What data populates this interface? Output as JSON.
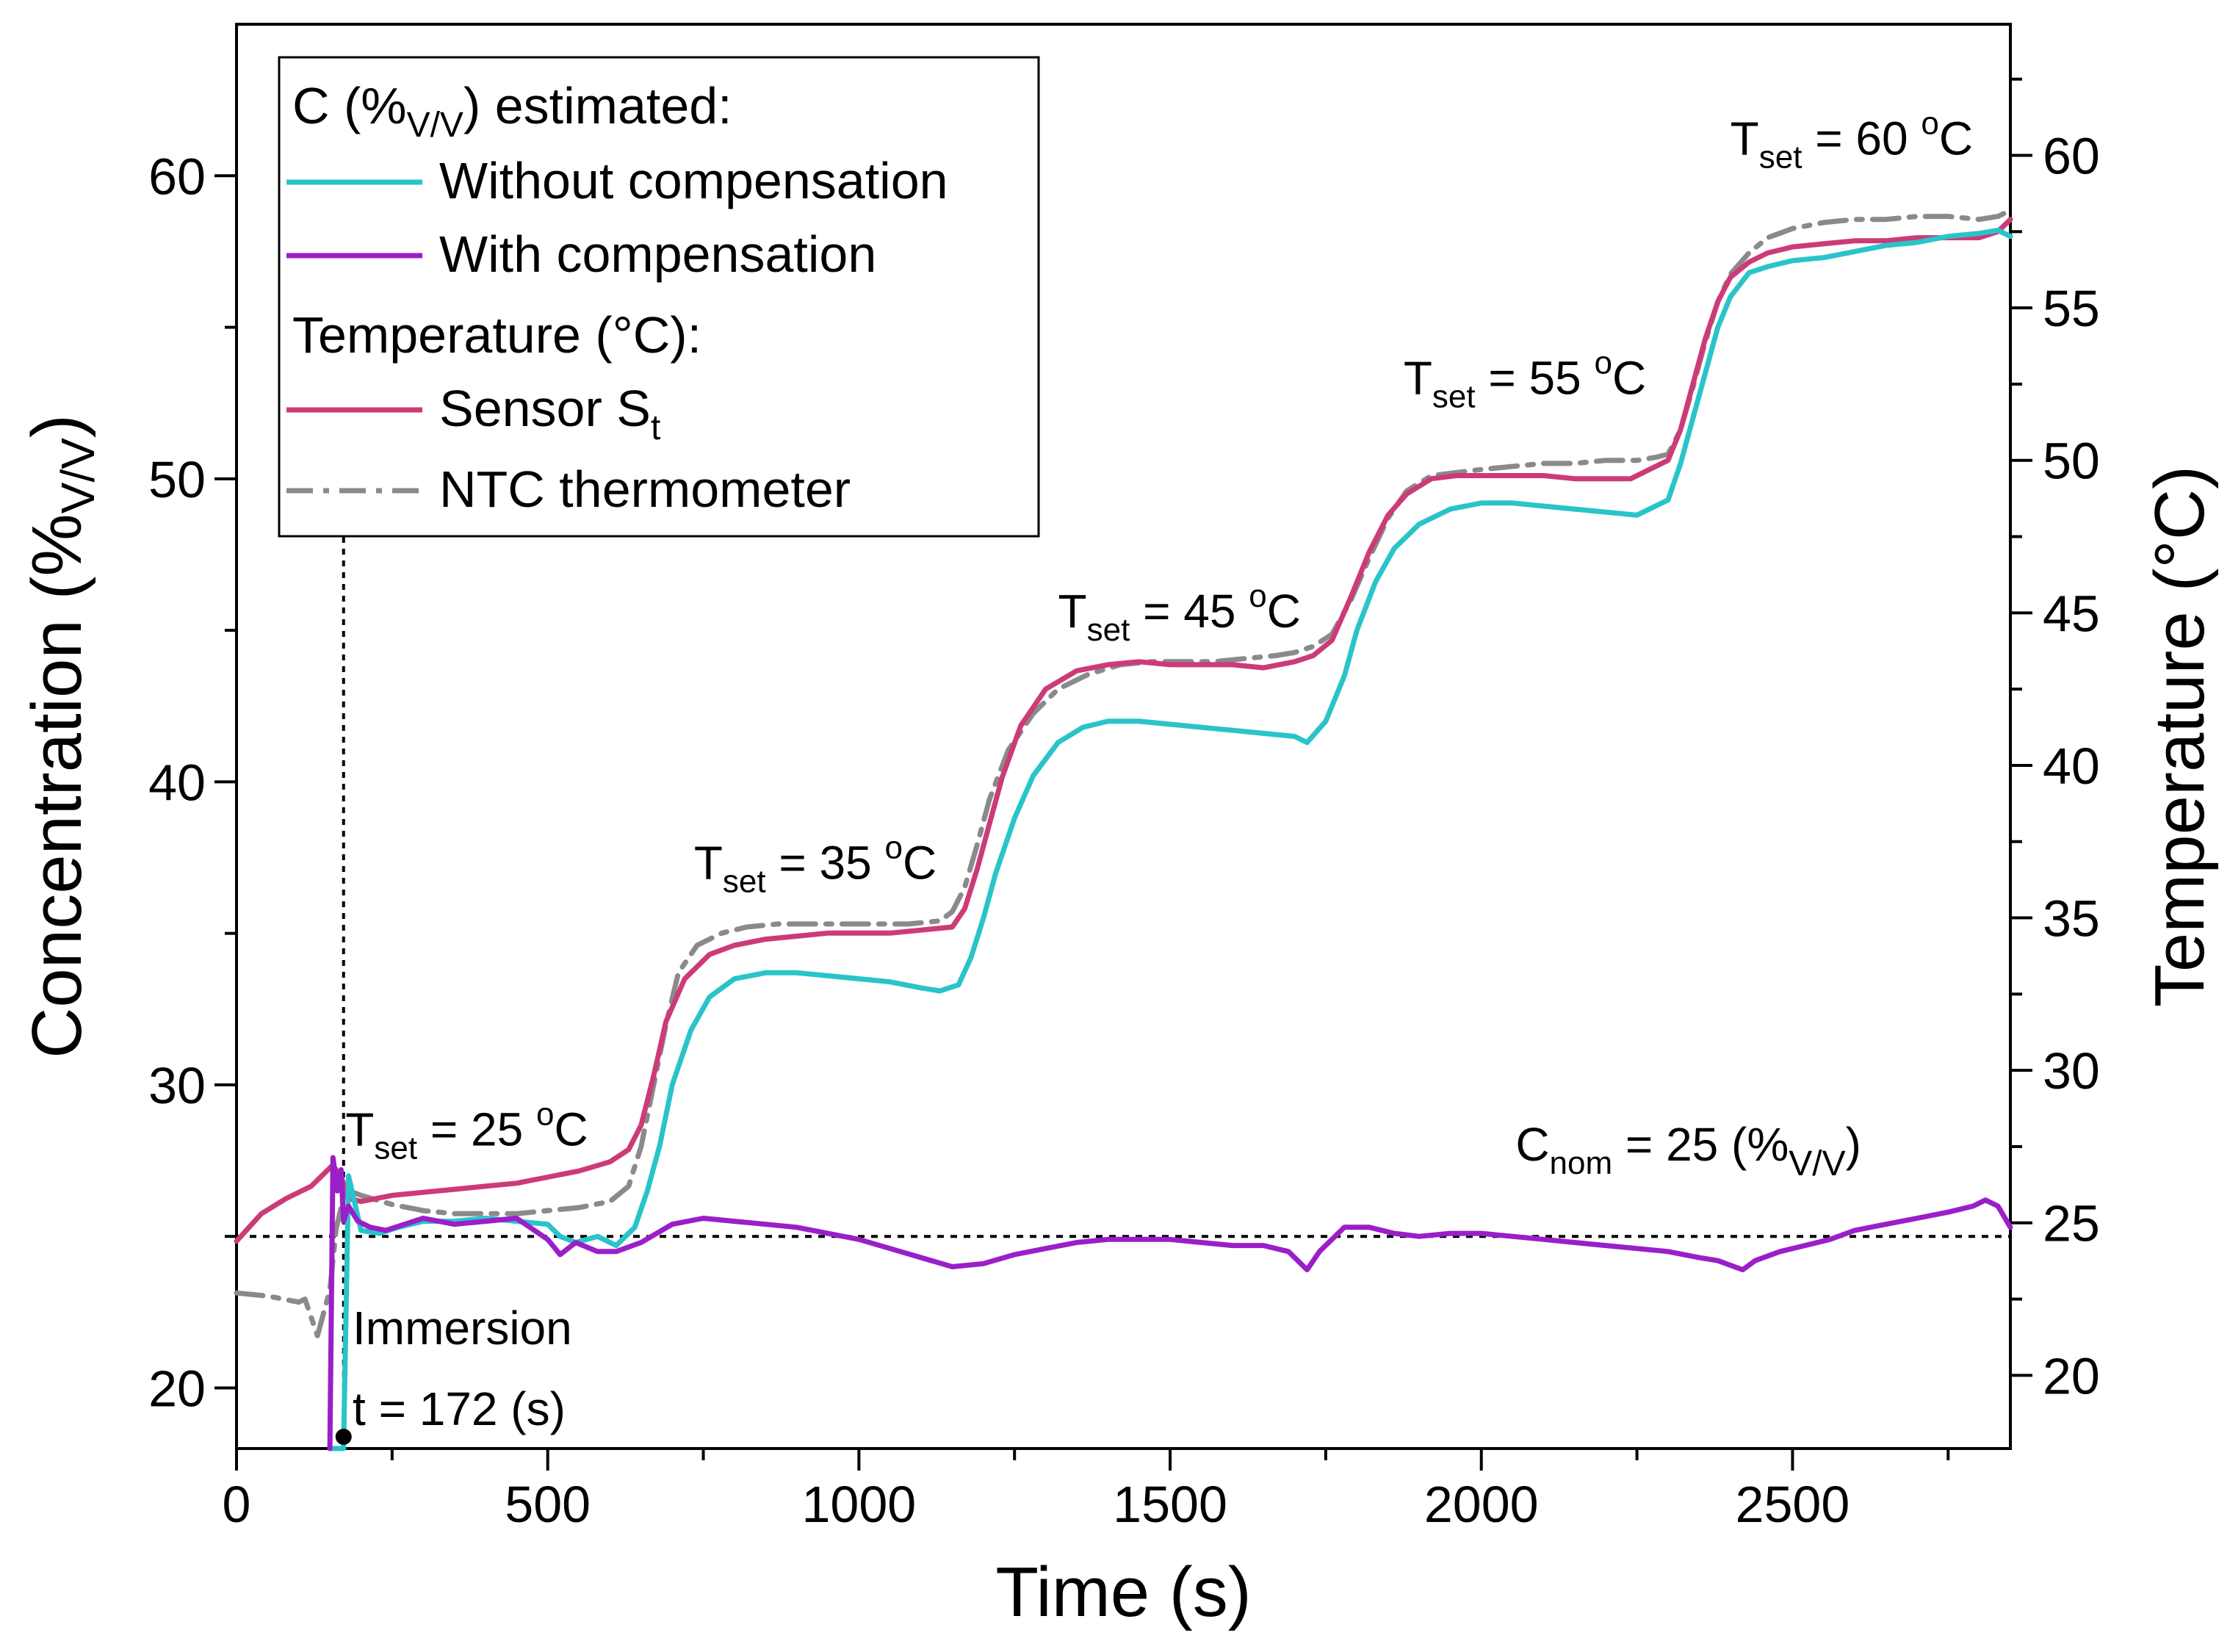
{
  "chart_data": {
    "type": "line",
    "title": "",
    "xlabel": "Time (s)",
    "ylabel": "Concentration (%",
    "ylabel_sub": "V/V",
    "ylabel_end": ")",
    "y2label": "Temperature (°C)",
    "xlim": [
      0,
      2850
    ],
    "ylim": [
      18,
      65
    ],
    "y2lim": [
      17.6,
      64.3
    ],
    "x_ticks": [
      0,
      500,
      1000,
      1500,
      2000,
      2500
    ],
    "x_tick_labels": [
      "0",
      "500",
      "1000",
      "1500",
      "2000",
      "2500"
    ],
    "y_ticks": [
      20,
      30,
      40,
      50,
      60
    ],
    "y_tick_labels": [
      "20",
      "30",
      "40",
      "50",
      "60"
    ],
    "y2_ticks": [
      20,
      25,
      30,
      35,
      40,
      45,
      50,
      55,
      60
    ],
    "y2_tick_labels": [
      "20",
      "25",
      "30",
      "35",
      "40",
      "45",
      "50",
      "55",
      "60"
    ],
    "grid": false,
    "legend": {
      "position": "top-left",
      "group1_prefix": "C (%",
      "group1_sub": "V/V",
      "group1_suffix": ") estimated:",
      "group2_header": "Temperature (°C):",
      "entries": [
        {
          "label": "Without compensation",
          "sub": "",
          "color": "#29c4c9",
          "dash": "solid"
        },
        {
          "label": "With compensation",
          "sub": "",
          "color": "#9a1fc9",
          "dash": "solid"
        },
        {
          "label": "Sensor S",
          "sub": "t",
          "color": "#cc3b78",
          "dash": "solid"
        },
        {
          "label": "NTC thermometer",
          "sub": "",
          "color": "#8a8a8a",
          "dash": "dashdot"
        }
      ]
    },
    "annotations": {
      "tset": [
        {
          "main": "T",
          "sub": "set",
          "text": " = 25 ",
          "sup": "o",
          "unit": "C",
          "x": 175,
          "y": 28.0
        },
        {
          "main": "T",
          "sub": "set",
          "text": " = 35 ",
          "sup": "o",
          "unit": "C",
          "x": 735,
          "y": 36.8
        },
        {
          "main": "T",
          "sub": "set",
          "text": " = 45 ",
          "sup": "o",
          "unit": "C",
          "x": 1320,
          "y": 45.1
        },
        {
          "main": "T",
          "sub": "set",
          "text": " = 55 ",
          "sup": "o",
          "unit": "C",
          "x": 1875,
          "y": 52.8
        },
        {
          "main": "T",
          "sub": "set",
          "text": " = 60 ",
          "sup": "o",
          "unit": "C",
          "x": 2400,
          "y": 60.7
        }
      ],
      "cnom": {
        "main": "C",
        "sub": "nom",
        "text": " = 25 (%",
        "sub2": "V/V",
        "end": ")",
        "x": 2055,
        "y": 27.5
      },
      "cnom_value": 25,
      "immersion_label": "Immersion",
      "immersion_time_label": "t = 172 (s)",
      "immersion_time": 172
    },
    "series": [
      {
        "name": "Without compensation",
        "axis": "left",
        "color": "#29c4c9",
        "x": [
          150,
          165,
          172,
          180,
          200,
          230,
          260,
          300,
          350,
          400,
          450,
          500,
          520,
          545,
          580,
          610,
          640,
          660,
          680,
          700,
          730,
          760,
          800,
          850,
          900,
          950,
          1000,
          1050,
          1100,
          1130,
          1160,
          1180,
          1200,
          1220,
          1250,
          1280,
          1320,
          1360,
          1400,
          1450,
          1500,
          1550,
          1600,
          1650,
          1700,
          1720,
          1750,
          1780,
          1800,
          1830,
          1860,
          1900,
          1950,
          2000,
          2050,
          2100,
          2150,
          2200,
          2250,
          2300,
          2320,
          2340,
          2360,
          2380,
          2400,
          2430,
          2460,
          2500,
          2550,
          2600,
          2650,
          2700,
          2750,
          2800,
          2830,
          2850
        ],
        "y": [
          18.0,
          18.0,
          18.0,
          27.0,
          25.2,
          25.1,
          25.3,
          25.5,
          25.5,
          25.6,
          25.5,
          25.4,
          25.0,
          24.8,
          25.0,
          24.7,
          25.3,
          26.5,
          28.0,
          30.0,
          31.8,
          32.9,
          33.5,
          33.7,
          33.7,
          33.6,
          33.5,
          33.4,
          33.2,
          33.1,
          33.3,
          34.2,
          35.5,
          37.0,
          38.8,
          40.2,
          41.3,
          41.8,
          42.0,
          42.0,
          41.9,
          41.8,
          41.7,
          41.6,
          41.5,
          41.3,
          42.0,
          43.5,
          45.0,
          46.6,
          47.7,
          48.5,
          49.0,
          49.2,
          49.2,
          49.1,
          49.0,
          48.9,
          48.8,
          49.3,
          50.5,
          52.0,
          53.5,
          55.0,
          56.0,
          56.8,
          57.0,
          57.2,
          57.3,
          57.5,
          57.7,
          57.8,
          58.0,
          58.1,
          58.2,
          58.0
        ]
      },
      {
        "name": "With compensation",
        "axis": "left",
        "color": "#9a1fc9",
        "x": [
          150,
          155,
          162,
          168,
          172,
          180,
          195,
          215,
          240,
          270,
          300,
          350,
          400,
          450,
          500,
          520,
          545,
          580,
          610,
          650,
          700,
          750,
          800,
          850,
          900,
          950,
          1000,
          1050,
          1100,
          1150,
          1200,
          1250,
          1300,
          1350,
          1400,
          1450,
          1500,
          1550,
          1600,
          1650,
          1690,
          1720,
          1740,
          1780,
          1820,
          1860,
          1900,
          1950,
          2000,
          2050,
          2100,
          2150,
          2200,
          2250,
          2300,
          2350,
          2380,
          2420,
          2440,
          2480,
          2520,
          2560,
          2600,
          2650,
          2700,
          2750,
          2790,
          2810,
          2830,
          2850
        ],
        "y": [
          18.0,
          27.6,
          26.5,
          27.2,
          25.5,
          26.0,
          25.5,
          25.3,
          25.2,
          25.4,
          25.6,
          25.4,
          25.5,
          25.6,
          24.9,
          24.4,
          24.8,
          24.5,
          24.5,
          24.8,
          25.4,
          25.6,
          25.5,
          25.4,
          25.3,
          25.1,
          24.9,
          24.6,
          24.3,
          24.0,
          24.1,
          24.4,
          24.6,
          24.8,
          24.9,
          24.9,
          24.9,
          24.8,
          24.7,
          24.7,
          24.5,
          23.9,
          24.5,
          25.3,
          25.3,
          25.1,
          25.0,
          25.1,
          25.1,
          25.0,
          24.9,
          24.8,
          24.7,
          24.6,
          24.5,
          24.3,
          24.2,
          23.9,
          24.2,
          24.5,
          24.7,
          24.9,
          25.2,
          25.4,
          25.6,
          25.8,
          26.0,
          26.2,
          26.0,
          25.3
        ]
      },
      {
        "name": "Sensor St",
        "axis": "right",
        "color": "#cc3b78",
        "x": [
          0,
          40,
          80,
          120,
          155,
          170,
          180,
          200,
          250,
          300,
          350,
          400,
          450,
          500,
          550,
          600,
          630,
          650,
          670,
          690,
          720,
          760,
          800,
          850,
          900,
          950,
          1000,
          1050,
          1100,
          1150,
          1170,
          1190,
          1210,
          1230,
          1260,
          1300,
          1350,
          1400,
          1450,
          1500,
          1550,
          1600,
          1650,
          1700,
          1730,
          1760,
          1790,
          1820,
          1850,
          1880,
          1920,
          1960,
          2000,
          2050,
          2100,
          2150,
          2200,
          2240,
          2270,
          2300,
          2320,
          2340,
          2360,
          2380,
          2400,
          2430,
          2460,
          2500,
          2550,
          2600,
          2650,
          2700,
          2750,
          2800,
          2830,
          2850
        ],
        "y": [
          24.4,
          25.3,
          25.8,
          26.2,
          26.9,
          26.4,
          25.8,
          25.7,
          25.9,
          26.0,
          26.1,
          26.2,
          26.3,
          26.5,
          26.7,
          27.0,
          27.4,
          28.2,
          29.8,
          31.6,
          33.0,
          33.8,
          34.1,
          34.3,
          34.4,
          34.5,
          34.5,
          34.5,
          34.6,
          34.7,
          35.3,
          36.6,
          38.1,
          39.6,
          41.3,
          42.5,
          43.1,
          43.3,
          43.4,
          43.3,
          43.3,
          43.3,
          43.2,
          43.4,
          43.6,
          44.1,
          45.5,
          47.0,
          48.2,
          48.9,
          49.4,
          49.5,
          49.5,
          49.5,
          49.5,
          49.4,
          49.4,
          49.4,
          49.7,
          50.0,
          51.0,
          52.5,
          54.0,
          55.2,
          56.0,
          56.5,
          56.8,
          57.0,
          57.1,
          57.2,
          57.2,
          57.3,
          57.3,
          57.3,
          57.5,
          57.9
        ]
      },
      {
        "name": "NTC thermometer",
        "axis": "right",
        "color": "#8a8a8a",
        "x": [
          0,
          50,
          100,
          110,
          130,
          150,
          160,
          175,
          200,
          250,
          300,
          350,
          400,
          450,
          500,
          550,
          600,
          630,
          650,
          670,
          690,
          710,
          740,
          780,
          820,
          870,
          920,
          970,
          1020,
          1080,
          1130,
          1150,
          1170,
          1190,
          1210,
          1240,
          1280,
          1320,
          1370,
          1420,
          1470,
          1520,
          1570,
          1620,
          1670,
          1700,
          1730,
          1760,
          1790,
          1820,
          1850,
          1880,
          1920,
          1960,
          2000,
          2050,
          2100,
          2150,
          2200,
          2250,
          2280,
          2300,
          2320,
          2340,
          2360,
          2380,
          2400,
          2430,
          2460,
          2500,
          2550,
          2600,
          2650,
          2700,
          2750,
          2800,
          2830,
          2850
        ],
        "y": [
          22.7,
          22.6,
          22.4,
          22.5,
          21.3,
          22.8,
          24.8,
          26.1,
          25.9,
          25.6,
          25.4,
          25.3,
          25.3,
          25.3,
          25.4,
          25.5,
          25.7,
          26.2,
          27.5,
          29.5,
          31.5,
          33.2,
          34.1,
          34.5,
          34.7,
          34.8,
          34.8,
          34.8,
          34.8,
          34.8,
          34.9,
          35.2,
          36.0,
          37.4,
          38.9,
          40.5,
          41.7,
          42.5,
          43.0,
          43.3,
          43.4,
          43.4,
          43.4,
          43.5,
          43.6,
          43.7,
          43.9,
          44.3,
          45.4,
          46.8,
          48.1,
          49.0,
          49.5,
          49.6,
          49.7,
          49.8,
          49.9,
          49.9,
          50.0,
          50.0,
          50.1,
          50.2,
          51.0,
          52.4,
          53.9,
          55.2,
          56.1,
          56.8,
          57.3,
          57.6,
          57.8,
          57.9,
          57.9,
          58.0,
          58.0,
          57.9,
          58.0,
          58.2
        ]
      }
    ]
  }
}
